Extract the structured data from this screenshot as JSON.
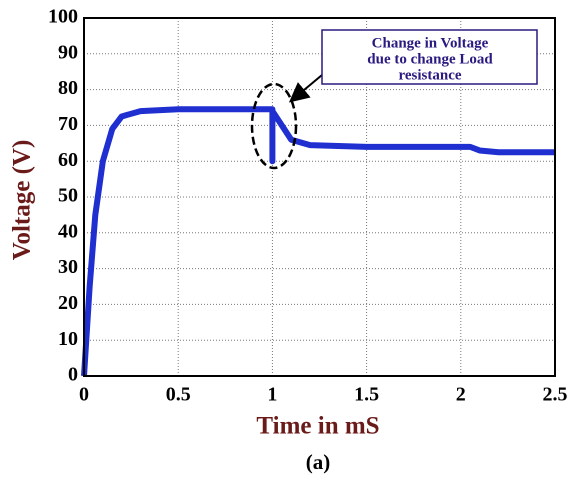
{
  "chart_data": {
    "type": "line",
    "ylabel": "Voltage (V)",
    "xlabel": "Time in mS",
    "caption": "(a)",
    "annotation": [
      "Change in Voltage",
      "due to change Load",
      "resistance"
    ],
    "x": [
      0,
      0.03,
      0.06,
      0.1,
      0.15,
      0.2,
      0.3,
      0.5,
      1.0,
      1.0,
      1.0,
      1.05,
      1.1,
      1.2,
      1.5,
      2.05,
      2.1,
      2.2,
      2.5
    ],
    "series": [
      {
        "name": "Voltage",
        "color": "#1f2fd0",
        "values": [
          0,
          25,
          45,
          60,
          69,
          72.5,
          74,
          74.5,
          74.5,
          60,
          74,
          70,
          66,
          64.5,
          64,
          64,
          63,
          62.5,
          62.5
        ]
      }
    ],
    "xlim": [
      0,
      2.5
    ],
    "xticks": [
      0,
      0.5,
      1,
      1.5,
      2,
      2.5
    ],
    "ylim": [
      0,
      100
    ],
    "yticks": [
      0,
      10,
      20,
      30,
      40,
      50,
      60,
      70,
      80,
      90,
      100
    ],
    "grid": true
  }
}
